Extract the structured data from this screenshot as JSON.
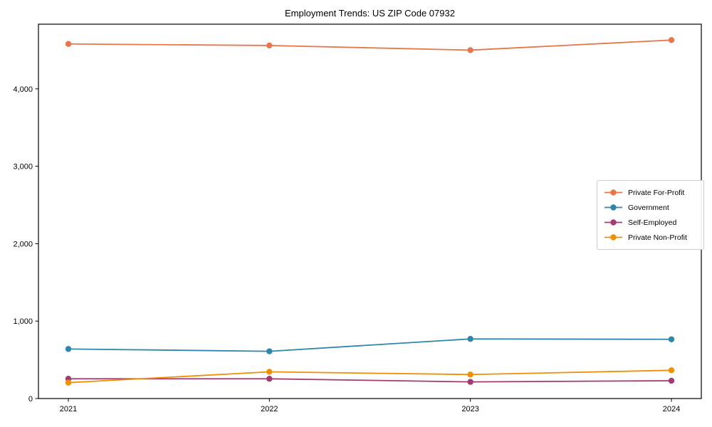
{
  "page": {
    "background": "#ffffff"
  },
  "chart_data": {
    "type": "line",
    "title": "Employment Trends: US ZIP Code 07932",
    "categories": [
      "2021",
      "2022",
      "2023",
      "2024"
    ],
    "series": [
      {
        "name": "Private For-Profit",
        "color": "#E8764B",
        "values": [
          4580,
          4560,
          4500,
          4630
        ]
      },
      {
        "name": "Government",
        "color": "#2E86AB",
        "values": [
          640,
          610,
          770,
          765
        ]
      },
      {
        "name": "Self-Employed",
        "color": "#A23B72",
        "values": [
          255,
          255,
          215,
          230
        ]
      },
      {
        "name": "Private Non-Profit",
        "color": "#F18F01",
        "values": [
          205,
          345,
          310,
          365
        ]
      }
    ],
    "xlabel": "",
    "ylabel": "",
    "ylim": [
      0,
      4835
    ],
    "y_ticks": [
      0,
      1000,
      2000,
      3000,
      4000
    ],
    "y_tick_labels": [
      "0",
      "1,000",
      "2,000",
      "3,000",
      "4,000"
    ],
    "grid": false,
    "legend_position": "center right"
  }
}
